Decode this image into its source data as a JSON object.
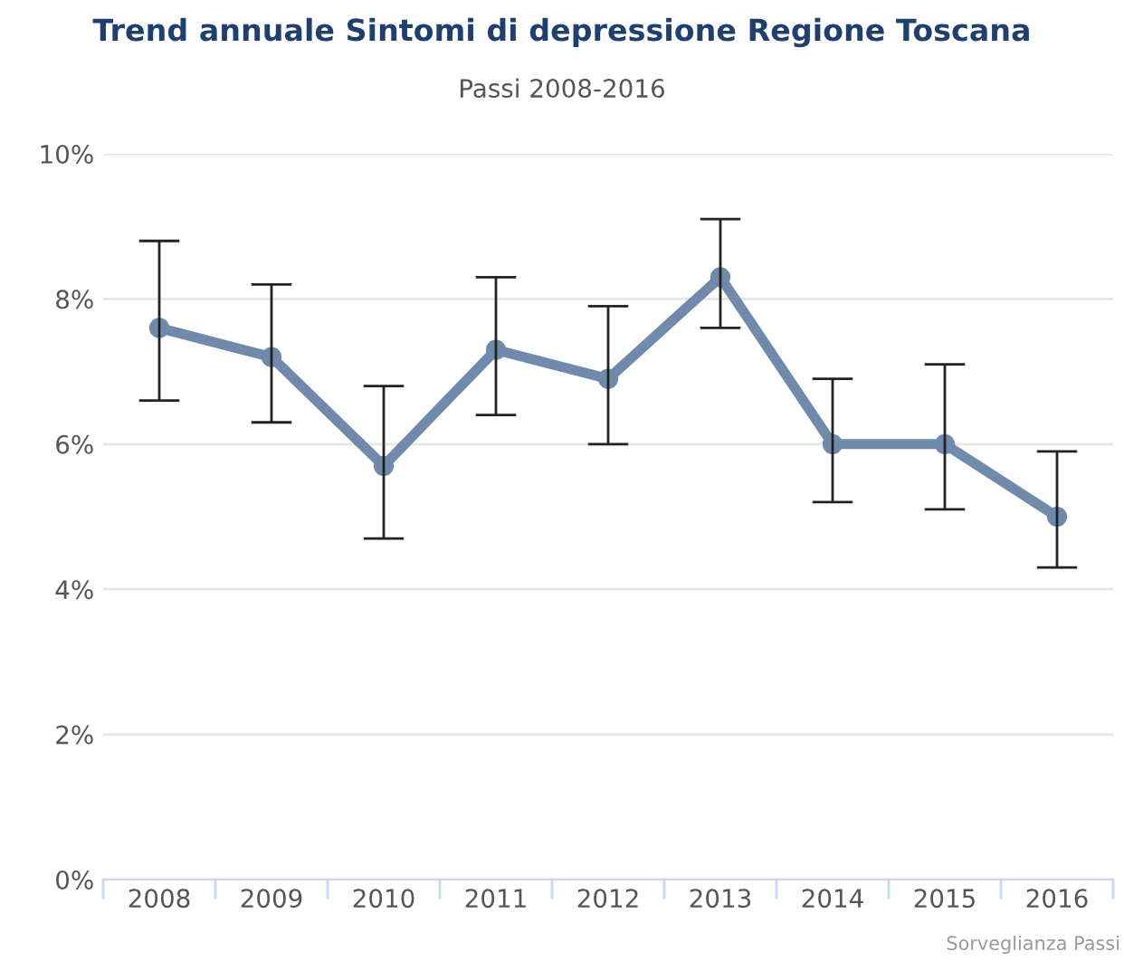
{
  "chart_data": {
    "type": "line",
    "title": "Trend annuale Sintomi di depressione Regione Toscana",
    "subtitle": "Passi 2008-2016",
    "categories": [
      "2008",
      "2009",
      "2010",
      "2011",
      "2012",
      "2013",
      "2014",
      "2015",
      "2016"
    ],
    "series": [
      {
        "color": "#6f8aaa",
        "values": [
          7.6,
          7.2,
          5.7,
          7.3,
          6.9,
          8.3,
          6.0,
          6.0,
          5.0
        ],
        "errors": [
          [
            6.6,
            8.8
          ],
          [
            6.3,
            8.2
          ],
          [
            4.7,
            6.8
          ],
          [
            6.4,
            8.3
          ],
          [
            6.0,
            7.9
          ],
          [
            7.6,
            9.1
          ],
          [
            5.2,
            6.9
          ],
          [
            5.1,
            7.1
          ],
          [
            4.3,
            5.9
          ]
        ]
      }
    ],
    "ylim": [
      0,
      10
    ],
    "yticks": [
      {
        "value": 0,
        "label": "0%"
      },
      {
        "value": 2,
        "label": "2%"
      },
      {
        "value": 4,
        "label": "4%"
      },
      {
        "value": 6,
        "label": "6%"
      },
      {
        "value": 8,
        "label": "8%"
      },
      {
        "value": 10,
        "label": "10%"
      }
    ],
    "grid": "y",
    "marker": "circle",
    "line_style": "solid",
    "legend": false,
    "annotations": [
      "Sorveglianza Passi"
    ]
  }
}
